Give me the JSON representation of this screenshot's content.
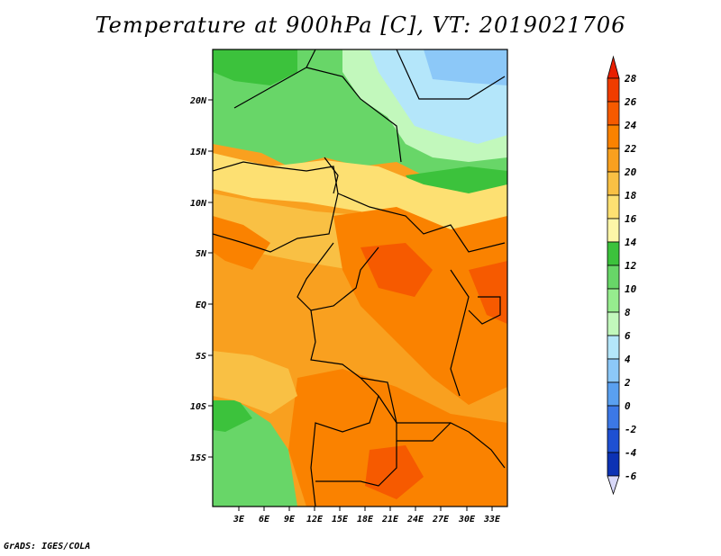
{
  "title": "Temperature at 900hPa [C], VT: 2019021706",
  "credit": "GrADS: IGES/COLA",
  "lat_labels": [
    "20N",
    "15N",
    "10N",
    "5N",
    "EQ",
    "5S",
    "10S",
    "15S"
  ],
  "lon_labels": [
    "3E",
    "6E",
    "9E",
    "12E",
    "15E",
    "18E",
    "21E",
    "24E",
    "27E",
    "30E",
    "33E"
  ],
  "colorbar": {
    "labels": [
      "28",
      "26",
      "24",
      "22",
      "20",
      "18",
      "16",
      "14",
      "12",
      "10",
      "8",
      "6",
      "4",
      "2",
      "0",
      "-2",
      "-4",
      "-6"
    ],
    "colors": [
      "#f03c00",
      "#f65a00",
      "#fa8200",
      "#f9a01f",
      "#f9c044",
      "#fde072",
      "#fdf6a8",
      "#3cc23c",
      "#68d668",
      "#96ec8e",
      "#c2f8bc",
      "#b4e6fa",
      "#8cc8f8",
      "#5aa0f0",
      "#3c78e6",
      "#1e50d2",
      "#0c32b4",
      "#081464"
    ],
    "over_color": "#e81e00",
    "under_color": "#d8d8f8"
  }
}
